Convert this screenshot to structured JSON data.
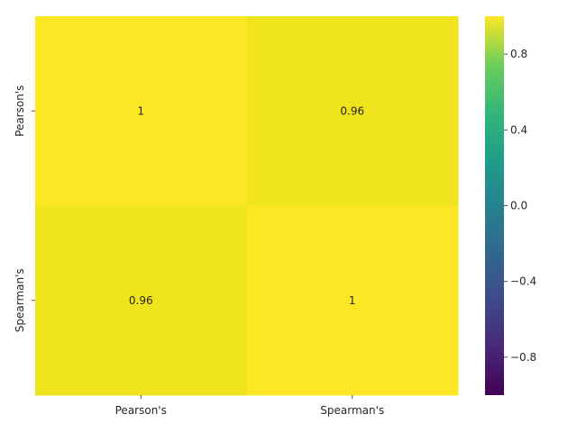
{
  "chart_data": {
    "type": "heatmap",
    "title": "",
    "xlabel": "",
    "ylabel": "",
    "x_categories": [
      "Pearson's",
      "Spearman's"
    ],
    "y_categories": [
      "Pearson's",
      "Spearman's"
    ],
    "values": [
      [
        1,
        0.96
      ],
      [
        0.96,
        1
      ]
    ],
    "annotations": [
      [
        "1",
        "0.96"
      ],
      [
        "0.96",
        "1"
      ]
    ],
    "colormap": "viridis",
    "color_range": [
      -1,
      1
    ],
    "colorbar": {
      "ticks": [
        -0.8,
        -0.4,
        0.0,
        0.4,
        0.8
      ],
      "tick_labels": [
        "−0.8",
        "−0.4",
        "0.0",
        "0.4",
        "0.8"
      ]
    },
    "cell_colors": {
      "high": "#fde725",
      "mid": "#f0e41c"
    }
  }
}
